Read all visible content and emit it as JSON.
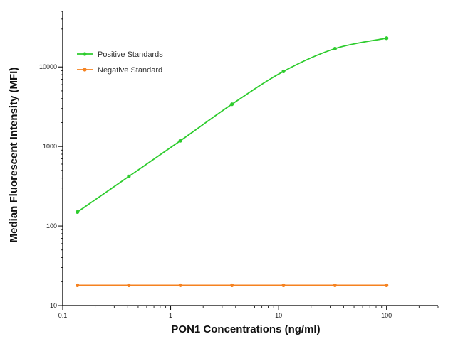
{
  "chart_data": {
    "type": "line",
    "xlabel": "PON1 Concentrations (ng/ml)",
    "ylabel": "Median  Fluorescent Intensity  (MFI)",
    "x_scale": "log",
    "y_scale": "log",
    "xlim": [
      0.1,
      300
    ],
    "ylim": [
      10,
      50000
    ],
    "x_ticks": [
      {
        "value": 0.1,
        "label": "0.1"
      },
      {
        "value": 1,
        "label": "1"
      },
      {
        "value": 10,
        "label": "10"
      },
      {
        "value": 100,
        "label": "100"
      }
    ],
    "y_ticks": [
      {
        "value": 10,
        "label": "10"
      },
      {
        "value": 100,
        "label": "100"
      },
      {
        "value": 1000,
        "label": "1000"
      },
      {
        "value": 10000,
        "label": "10000"
      }
    ],
    "legend_position": "top-left",
    "grid": false,
    "series": [
      {
        "name": "Positive Standards",
        "color": "#2ecc2e",
        "marker": "circle",
        "x": [
          0.137,
          0.41,
          1.23,
          3.7,
          11.1,
          33.3,
          100
        ],
        "y": [
          150,
          420,
          1180,
          3400,
          8800,
          17000,
          23000
        ]
      },
      {
        "name": "Negative Standard",
        "color": "#f58220",
        "marker": "circle",
        "x": [
          0.137,
          0.41,
          1.23,
          3.7,
          11.1,
          33.3,
          100
        ],
        "y": [
          18,
          18,
          18,
          18,
          18,
          18,
          18
        ]
      }
    ]
  }
}
